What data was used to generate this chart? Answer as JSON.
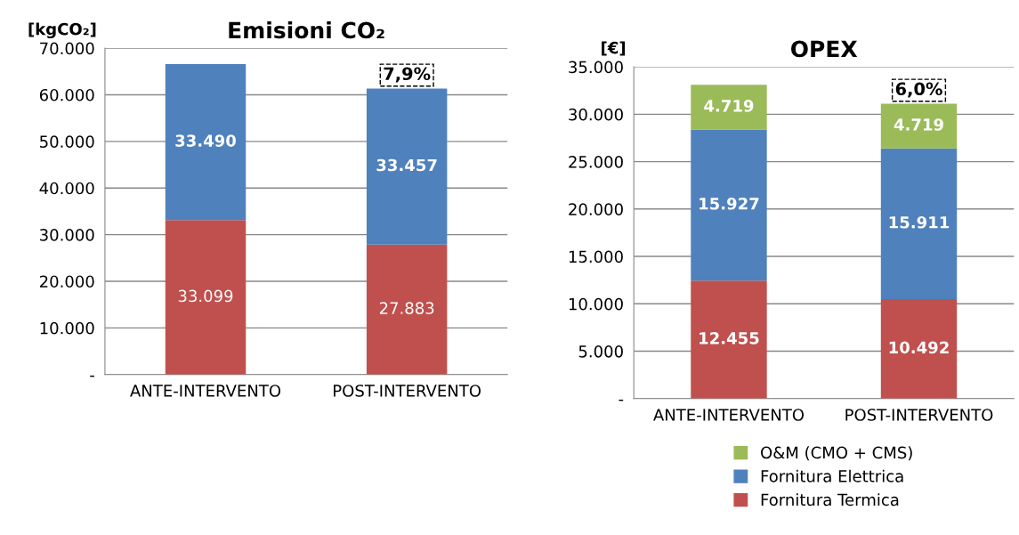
{
  "chart_data": [
    {
      "type": "bar",
      "title": "Emisioni CO₂",
      "ylabel": "[kgCO₂]",
      "stacked": true,
      "grid": "y",
      "legend": false,
      "categories": [
        "ANTE-INTERVENTO",
        "POST-INTERVENTO"
      ],
      "ylim": [
        0,
        70000
      ],
      "yticks": [
        {
          "value": 0,
          "label": "-"
        },
        {
          "value": 10000,
          "label": "10.000"
        },
        {
          "value": 20000,
          "label": "20.000"
        },
        {
          "value": 30000,
          "label": "30.000"
        },
        {
          "value": 40000,
          "label": "40.000"
        },
        {
          "value": 50000,
          "label": "50.000"
        },
        {
          "value": 60000,
          "label": "60.000"
        },
        {
          "value": 70000,
          "label": "70.000"
        }
      ],
      "series": [
        {
          "color": "#c0504d",
          "values": [
            33099,
            27883
          ],
          "value_labels": [
            "33.099",
            "27.883"
          ]
        },
        {
          "color": "#4f81bd",
          "values": [
            33490,
            33457
          ],
          "value_labels": [
            "33.490",
            "33.457"
          ]
        }
      ],
      "annotations": [
        "7,9%"
      ]
    },
    {
      "type": "bar",
      "title": "OPEX",
      "ylabel": "[€]",
      "stacked": true,
      "grid": "y",
      "legend": "bottom",
      "categories": [
        "ANTE-INTERVENTO",
        "POST-INTERVENTO"
      ],
      "ylim": [
        0,
        35000
      ],
      "yticks": [
        {
          "value": 0,
          "label": "-"
        },
        {
          "value": 5000,
          "label": "5.000"
        },
        {
          "value": 10000,
          "label": "10.000"
        },
        {
          "value": 15000,
          "label": "15.000"
        },
        {
          "value": 20000,
          "label": "20.000"
        },
        {
          "value": 25000,
          "label": "25.000"
        },
        {
          "value": 30000,
          "label": "30.000"
        },
        {
          "value": 35000,
          "label": "35.000"
        }
      ],
      "series": [
        {
          "name": "Fornitura Termica",
          "color": "#c0504d",
          "values": [
            12455,
            10492
          ],
          "value_labels": [
            "12.455",
            "10.492"
          ]
        },
        {
          "name": "Fornitura Elettrica",
          "color": "#4f81bd",
          "values": [
            15927,
            15911
          ],
          "value_labels": [
            "15.927",
            "15.911"
          ]
        },
        {
          "name": "O&M (CMO + CMS)",
          "color": "#9bbb59",
          "values": [
            4719,
            4719
          ],
          "value_labels": [
            "4.719",
            "4.719"
          ]
        }
      ],
      "annotations": [
        "6,0%"
      ]
    }
  ]
}
